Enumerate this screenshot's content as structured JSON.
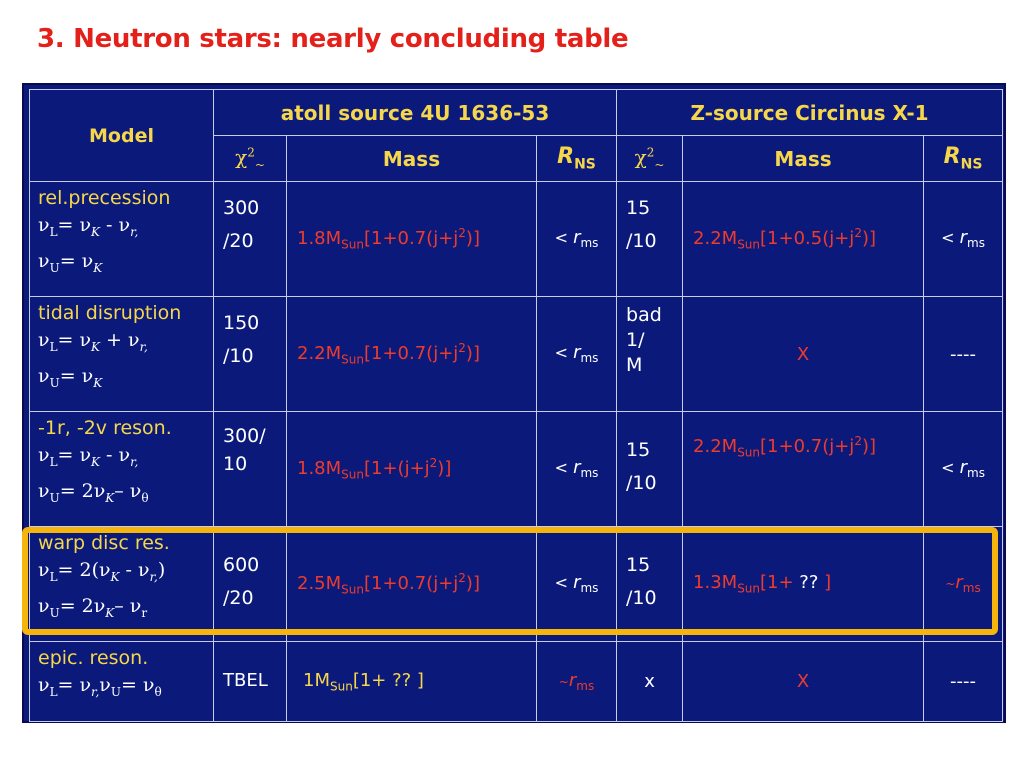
{
  "title": "3. Neutron stars:  nearly concluding table",
  "header": {
    "model": "Model",
    "atoll": "atoll source 4U 1636-53",
    "z_source": "Z-source Circinus X-1",
    "chi": "χ",
    "chi_sup": "2",
    "chi_sub": "~",
    "mass": "Mass",
    "r_label": "R",
    "r_sub": "NS"
  },
  "rows": [
    {
      "model_name": "rel.precession",
      "f1": [
        "ν",
        "L",
        "= ν",
        "K",
        " - ν",
        "r,",
        ""
      ],
      "f2": [
        "ν",
        "U",
        "= ν",
        "K",
        "",
        "",
        ""
      ],
      "atoll_chi": [
        "300",
        "/20"
      ],
      "atoll_mass": {
        "pre": "1.8M",
        "sub": "Sun",
        "post": "[1+0.7(j+j",
        "sup": "2",
        "end": ")]"
      },
      "atoll_r": {
        "pre": "< ",
        "r": "r",
        "sub": "ms"
      },
      "z_chi": [
        "15",
        "/10"
      ],
      "z_mass": {
        "pre": "2.2M",
        "sub": "Sun",
        "post": "[1+0.5(j+j",
        "sup": "2",
        "end": ")]"
      },
      "z_r": {
        "pre": "< ",
        "r": "r",
        "sub": "ms"
      }
    },
    {
      "model_name": "tidal disruption",
      "f1": [
        "ν",
        "L",
        "= ν",
        "K",
        " + ν",
        "r,",
        ""
      ],
      "f2": [
        "ν",
        "U",
        "= ν",
        "K",
        "",
        "",
        ""
      ],
      "atoll_chi": [
        "150",
        "/10"
      ],
      "atoll_mass": {
        "pre": "2.2M",
        "sub": "Sun",
        "post": "[1+0.7(j+j",
        "sup": "2",
        "end": ")]"
      },
      "atoll_r": {
        "pre": "< ",
        "r": "r",
        "sub": "ms"
      },
      "z_chi": [
        "bad",
        "1/",
        "M"
      ],
      "z_mass_text": "X",
      "z_r_text": "----"
    },
    {
      "model_name": "-1r, -2v reson.",
      "f1": [
        "ν",
        "L",
        "= ν",
        "K",
        " - ν",
        "r,",
        ""
      ],
      "f2": [
        "ν",
        "U",
        "= 2ν",
        "K",
        "– ν",
        "θ",
        ""
      ],
      "atoll_chi": [
        "300/",
        "10"
      ],
      "atoll_mass": {
        "pre": "1.8M",
        "sub": "Sun",
        "post": "[1+(j+j",
        "sup": "2",
        "end": ")]"
      },
      "atoll_r": {
        "pre": "< ",
        "r": "r",
        "sub": "ms"
      },
      "z_chi": [
        "15",
        "/10"
      ],
      "z_mass": {
        "pre": "2.2M",
        "sub": "Sun",
        "post": "[1+0.7(j+j",
        "sup": "2",
        "end": ")]"
      },
      "z_r": {
        "pre": "< ",
        "r": "r",
        "sub": "ms"
      }
    },
    {
      "model_name": "warp disc res.",
      "f1": [
        "ν",
        "L",
        "= 2(ν",
        "K",
        " - ν",
        "r,",
        ")"
      ],
      "f2": [
        "ν",
        "U",
        "= 2ν",
        "K",
        "– ν",
        "r",
        ""
      ],
      "atoll_chi": [
        "600",
        "/20"
      ],
      "atoll_mass": {
        "pre": "2.5M",
        "sub": "Sun",
        "post": "[1+0.7(j+j",
        "sup": "2",
        "end": ")]"
      },
      "atoll_r": {
        "pre": "< ",
        "r": "r",
        "sub": "ms"
      },
      "z_chi": [
        "15",
        "/10"
      ],
      "z_mass_q": {
        "pre": "1.3M",
        "sub": "Sun",
        "post": "[1+ ",
        "q": "??",
        "end": " ]"
      },
      "z_r_approx": {
        "tilde": "~",
        "r": "r",
        "sub": "ms"
      }
    },
    {
      "model_name": "epic. reson.",
      "f1": [
        "ν",
        "L",
        "= ν",
        "r,",
        "ν",
        "U",
        "= ν"
      ],
      "f1_theta": "θ",
      "atoll_chi_text": "TBEL",
      "atoll_mass_q": {
        "pre": "1M",
        "sub": "Sun",
        "post": "[1+ ?? ]"
      },
      "atoll_r_approx": {
        "tilde": "~",
        "r": "r",
        "sub": "ms"
      },
      "z_chi_text": "x",
      "z_mass_text": "X",
      "z_r_text": "----"
    }
  ]
}
